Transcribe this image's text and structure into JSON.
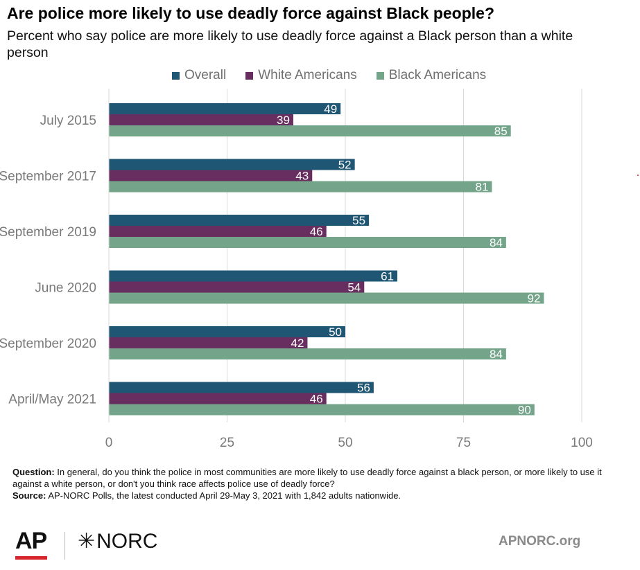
{
  "header": {
    "title": "Are police more likely to use deadly force against Black people?",
    "subtitle": "Percent who say police are more likely to use deadly force against a Black person than a white person"
  },
  "colors": {
    "overall": "#1f5674",
    "white_americans": "#682e5f",
    "black_americans": "#74a58a",
    "gridline": "#d9d9d9",
    "axis_text": "#7a7a7a"
  },
  "chart_data": {
    "type": "bar",
    "orientation": "horizontal",
    "categories": [
      "July 2015",
      "September 2017",
      "September 2019",
      "June 2020",
      "September 2020",
      "April/May 2021"
    ],
    "series": [
      {
        "name": "Overall",
        "values": [
          49,
          52,
          55,
          61,
          50,
          56
        ]
      },
      {
        "name": "White Americans",
        "values": [
          39,
          43,
          46,
          54,
          42,
          46
        ]
      },
      {
        "name": "Black Americans",
        "values": [
          85,
          81,
          84,
          92,
          84,
          90
        ]
      }
    ],
    "xlim": [
      0,
      100
    ],
    "xticks": [
      "0",
      "25",
      "50",
      "75",
      "100"
    ],
    "grid": true,
    "legend": "top",
    "data_labels": true
  },
  "footnote": {
    "question_label": "Question:",
    "question_text": "In general, do you think the police in most communities are more likely to use deadly force against a black person, or more likely to use it against a white person, or don't you think race affects police use of deadly force?",
    "source_label": "Source:",
    "source_text": "AP-NORC Polls, the latest conducted April 29-May 3, 2021 with 1,842 adults nationwide."
  },
  "branding": {
    "ap": "AP",
    "norc": "NORC",
    "url": "APNORC.org"
  }
}
